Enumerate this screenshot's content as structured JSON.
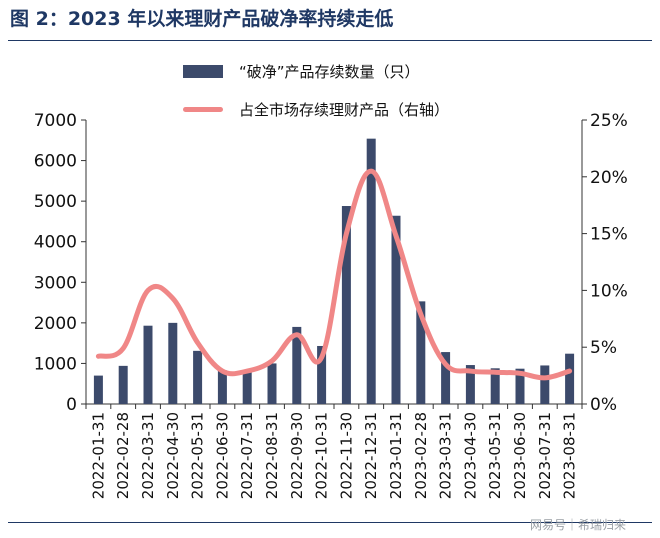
{
  "header": {
    "title": "图 2：2023 年以来理财产品破净率持续走低"
  },
  "legend": {
    "bar_label": "“破净”产品存续数量（只）",
    "line_label": "占全市场存续理财产品（右轴）"
  },
  "watermark": "网易号｜希瑞归来",
  "chart_data": {
    "type": "bar",
    "categories": [
      "2022-01-31",
      "2022-02-28",
      "2022-03-31",
      "2022-04-30",
      "2022-05-31",
      "2022-06-30",
      "2022-07-31",
      "2022-08-31",
      "2022-09-30",
      "2022-10-31",
      "2022-11-30",
      "2022-12-31",
      "2023-01-31",
      "2023-02-28",
      "2023-03-31",
      "2023-04-30",
      "2023-05-31",
      "2023-06-30",
      "2023-07-31",
      "2023-08-31"
    ],
    "series": [
      {
        "name": "“破净”产品存续数量（只）",
        "type": "bar",
        "axis": "left",
        "color": "#3c4a6b",
        "values": [
          700,
          940,
          1930,
          2000,
          1310,
          830,
          820,
          1000,
          1900,
          1430,
          4880,
          6540,
          4640,
          2530,
          1280,
          960,
          880,
          870,
          950,
          1240
        ]
      },
      {
        "name": "占全市场存续理财产品（右轴）",
        "type": "line",
        "axis": "right",
        "color": "#f08787",
        "values": [
          4.2,
          4.9,
          10.0,
          9.3,
          5.4,
          2.9,
          2.9,
          3.8,
          6.1,
          4.1,
          15.0,
          20.5,
          14.8,
          7.9,
          3.5,
          2.9,
          2.8,
          2.7,
          2.3,
          2.9
        ]
      }
    ],
    "left_axis": {
      "ylim": [
        0,
        7000
      ],
      "ticks": [
        "0",
        "1000",
        "2000",
        "3000",
        "4000",
        "5000",
        "6000",
        "7000"
      ]
    },
    "right_axis": {
      "ylim": [
        0,
        25
      ],
      "ticks": [
        "0%",
        "5%",
        "10%",
        "15%",
        "20%",
        "25%"
      ]
    },
    "grid": false,
    "legend_position": "top-center"
  }
}
